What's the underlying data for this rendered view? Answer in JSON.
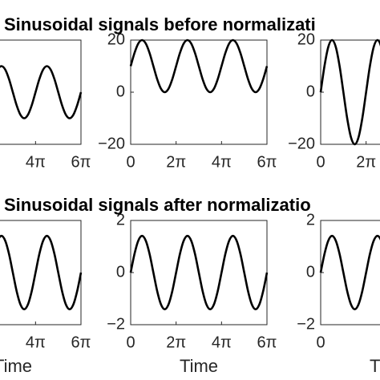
{
  "chart_data": [
    {
      "type": "line",
      "x": [
        0,
        0.5236,
        1.0472,
        1.5708,
        2.0944,
        2.618,
        3.1416,
        3.6652,
        4.1888,
        4.7124,
        5.236,
        5.7596,
        6.2832,
        6.8068,
        7.3304,
        7.854,
        8.3776,
        8.9012,
        9.4248,
        9.9484,
        10.472,
        10.9956,
        11.5192,
        12.0428,
        12.5664,
        13.09,
        13.6136,
        14.1372,
        14.6608,
        15.1844,
        15.708,
        16.2316,
        16.7552,
        17.2788,
        17.8024,
        18.326,
        18.8496
      ],
      "series": [
        {
          "color": "#000000",
          "values": [
            0,
            5,
            8.66,
            10,
            8.66,
            5,
            0,
            -5,
            -8.66,
            -10,
            -8.66,
            -5,
            0,
            5,
            8.66,
            10,
            8.66,
            5,
            0,
            -5,
            -8.66,
            -10,
            -8.66,
            -5,
            0,
            5,
            8.66,
            10,
            8.66,
            5,
            0,
            -5,
            -8.66,
            -10,
            -8.66,
            -5,
            0
          ]
        }
      ],
      "xlim": [
        0,
        18.8496
      ],
      "ylim": [
        -20,
        20
      ],
      "xticks": [
        {
          "value": 12.5664,
          "label": "4π"
        },
        {
          "value": 18.8496,
          "label": "6π"
        }
      ]
    },
    {
      "type": "line",
      "title": "Sinusoidal signals before normalizati",
      "x": [
        0,
        0.5236,
        1.0472,
        1.5708,
        2.0944,
        2.618,
        3.1416,
        3.6652,
        4.1888,
        4.7124,
        5.236,
        5.7596,
        6.2832,
        6.8068,
        7.3304,
        7.854,
        8.3776,
        8.9012,
        9.4248,
        9.9484,
        10.472,
        10.9956,
        11.5192,
        12.0428,
        12.5664,
        13.09,
        13.6136,
        14.1372,
        14.6608,
        15.1844,
        15.708,
        16.2316,
        16.7552,
        17.2788,
        17.8024,
        18.326,
        18.8496
      ],
      "series": [
        {
          "color": "#000000",
          "values": [
            10,
            15,
            18.66,
            20,
            18.66,
            15,
            10,
            5,
            1.34,
            0,
            1.34,
            5,
            10,
            15,
            18.66,
            20,
            18.66,
            15,
            10,
            5,
            1.34,
            0,
            1.34,
            5,
            10,
            15,
            18.66,
            20,
            18.66,
            15,
            10,
            5,
            1.34,
            0,
            1.34,
            5,
            10
          ]
        }
      ],
      "xlim": [
        0,
        18.8496
      ],
      "ylim": [
        -20,
        20
      ],
      "xticks": [
        0,
        {
          "value": 6.2832,
          "label": "2π"
        },
        {
          "value": 12.5664,
          "label": "4π"
        },
        {
          "value": 18.8496,
          "label": "6π"
        }
      ],
      "yticks": [
        {
          "value": -20,
          "label": "−20"
        },
        0,
        20
      ]
    },
    {
      "type": "line",
      "x": [
        0,
        0.5236,
        1.0472,
        1.5708,
        2.0944,
        2.618,
        3.1416,
        3.6652,
        4.1888,
        4.7124,
        5.236,
        5.7596,
        6.2832,
        6.8068,
        7.3304,
        7.854,
        8.3776,
        8.9012,
        9.4248,
        9.9484,
        10.472,
        10.9956,
        11.5192,
        12.0428,
        12.5664,
        13.09,
        13.6136,
        14.1372,
        14.6608,
        15.1844,
        15.708,
        16.2316,
        16.7552,
        17.2788,
        17.8024,
        18.326,
        18.8496
      ],
      "series": [
        {
          "color": "#000000",
          "values": [
            0,
            10,
            17.32,
            20,
            17.32,
            10,
            0,
            -10,
            -17.32,
            -20,
            -17.32,
            -10,
            0,
            10,
            17.32,
            20,
            17.32,
            10,
            0,
            -10,
            -17.32,
            -20,
            -17.32,
            -10,
            0,
            10,
            17.32,
            20,
            17.32,
            10,
            0,
            -10,
            -17.32,
            -20,
            -17.32,
            -10,
            0
          ]
        }
      ],
      "xlim": [
        0,
        18.8496
      ],
      "ylim": [
        -20,
        20
      ],
      "xticks": [
        0,
        {
          "value": 6.2832,
          "label": "2π"
        }
      ],
      "yticks": [
        {
          "value": -20,
          "label": "−20"
        },
        0,
        20
      ]
    },
    {
      "type": "line",
      "xlabel": "Time",
      "x": [
        0,
        0.5236,
        1.0472,
        1.5708,
        2.0944,
        2.618,
        3.1416,
        3.6652,
        4.1888,
        4.7124,
        5.236,
        5.7596,
        6.2832,
        6.8068,
        7.3304,
        7.854,
        8.3776,
        8.9012,
        9.4248,
        9.9484,
        10.472,
        10.9956,
        11.5192,
        12.0428,
        12.5664,
        13.09,
        13.6136,
        14.1372,
        14.6608,
        15.1844,
        15.708,
        16.2316,
        16.7552,
        17.2788,
        17.8024,
        18.326,
        18.8496
      ],
      "series": [
        {
          "color": "#000000",
          "values": [
            0,
            0.71,
            1.22,
            1.41,
            1.22,
            0.71,
            0,
            -0.71,
            -1.22,
            -1.41,
            -1.22,
            -0.71,
            0,
            0.71,
            1.22,
            1.41,
            1.22,
            0.71,
            0,
            -0.71,
            -1.22,
            -1.41,
            -1.22,
            -0.71,
            0,
            0.71,
            1.22,
            1.41,
            1.22,
            0.71,
            0,
            -0.71,
            -1.22,
            -1.41,
            -1.22,
            -0.71,
            0
          ]
        }
      ],
      "xlim": [
        0,
        18.8496
      ],
      "ylim": [
        -2,
        2
      ],
      "xticks": [
        {
          "value": 12.5664,
          "label": "4π"
        },
        {
          "value": 18.8496,
          "label": "6π"
        }
      ]
    },
    {
      "type": "line",
      "title": "Sinusoidal signals after normalizatio",
      "xlabel": "Time",
      "x": [
        0,
        0.5236,
        1.0472,
        1.5708,
        2.0944,
        2.618,
        3.1416,
        3.6652,
        4.1888,
        4.7124,
        5.236,
        5.7596,
        6.2832,
        6.8068,
        7.3304,
        7.854,
        8.3776,
        8.9012,
        9.4248,
        9.9484,
        10.472,
        10.9956,
        11.5192,
        12.0428,
        12.5664,
        13.09,
        13.6136,
        14.1372,
        14.6608,
        15.1844,
        15.708,
        16.2316,
        16.7552,
        17.2788,
        17.8024,
        18.326,
        18.8496
      ],
      "series": [
        {
          "color": "#000000",
          "values": [
            0,
            0.71,
            1.22,
            1.41,
            1.22,
            0.71,
            0,
            -0.71,
            -1.22,
            -1.41,
            -1.22,
            -0.71,
            0,
            0.71,
            1.22,
            1.41,
            1.22,
            0.71,
            0,
            -0.71,
            -1.22,
            -1.41,
            -1.22,
            -0.71,
            0,
            0.71,
            1.22,
            1.41,
            1.22,
            0.71,
            0,
            -0.71,
            -1.22,
            -1.41,
            -1.22,
            -0.71,
            0
          ]
        }
      ],
      "xlim": [
        0,
        18.8496
      ],
      "ylim": [
        -2,
        2
      ],
      "xticks": [
        0,
        {
          "value": 6.2832,
          "label": "2π"
        },
        {
          "value": 12.5664,
          "label": "4π"
        },
        {
          "value": 18.8496,
          "label": "6π"
        }
      ],
      "yticks": [
        {
          "value": -2,
          "label": "−2"
        },
        0,
        2
      ]
    },
    {
      "type": "line",
      "xlabel": "Time",
      "x": [
        0,
        0.5236,
        1.0472,
        1.5708,
        2.0944,
        2.618,
        3.1416,
        3.6652,
        4.1888,
        4.7124,
        5.236,
        5.7596,
        6.2832,
        6.8068,
        7.3304,
        7.854,
        8.3776,
        8.9012,
        9.4248,
        9.9484,
        10.472,
        10.9956,
        11.5192,
        12.0428,
        12.5664,
        13.09,
        13.6136,
        14.1372,
        14.6608,
        15.1844,
        15.708,
        16.2316,
        16.7552,
        17.2788,
        17.8024,
        18.326,
        18.8496
      ],
      "series": [
        {
          "color": "#000000",
          "values": [
            0,
            0.71,
            1.22,
            1.41,
            1.22,
            0.71,
            0,
            -0.71,
            -1.22,
            -1.41,
            -1.22,
            -0.71,
            0,
            0.71,
            1.22,
            1.41,
            1.22,
            0.71,
            0,
            -0.71,
            -1.22,
            -1.41,
            -1.22,
            -0.71,
            0,
            0.71,
            1.22,
            1.41,
            1.22,
            0.71,
            0,
            -0.71,
            -1.22,
            -1.41,
            -1.22,
            -0.71,
            0
          ]
        }
      ],
      "xlim": [
        0,
        18.8496
      ],
      "ylim": [
        -2,
        2
      ],
      "xticks": [
        0
      ],
      "yticks": [
        {
          "value": -2,
          "label": "−2"
        },
        0,
        2
      ]
    }
  ]
}
